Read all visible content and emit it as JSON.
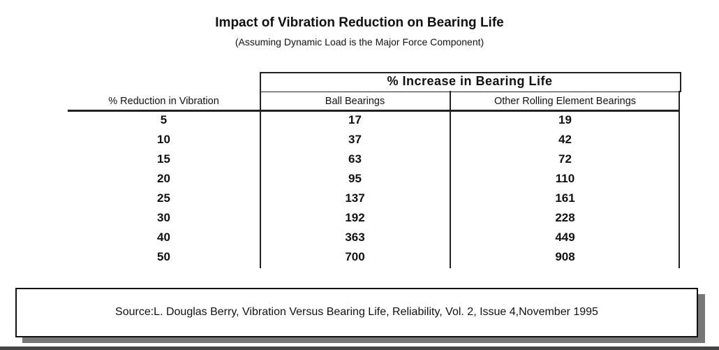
{
  "chart_data": {
    "type": "table",
    "title": "Impact of Vibration Reduction on Bearing Life",
    "subtitle": "(Assuming Dynamic Load is the Major Force Component)",
    "group_header": "% Increase in Bearing Life",
    "columns": [
      "% Reduction in Vibration",
      "Ball Bearings",
      "Other Rolling Element Bearings"
    ],
    "rows": [
      [
        "5",
        "17",
        "19"
      ],
      [
        "10",
        "37",
        "42"
      ],
      [
        "15",
        "63",
        "72"
      ],
      [
        "20",
        "95",
        "110"
      ],
      [
        "25",
        "137",
        "161"
      ],
      [
        "30",
        "192",
        "228"
      ],
      [
        "40",
        "363",
        "449"
      ],
      [
        "50",
        "700",
        "908"
      ]
    ],
    "source": "Source:L. Douglas Berry, Vibration Versus Bearing Life, Reliability, Vol. 2, Issue 4,November 1995"
  }
}
